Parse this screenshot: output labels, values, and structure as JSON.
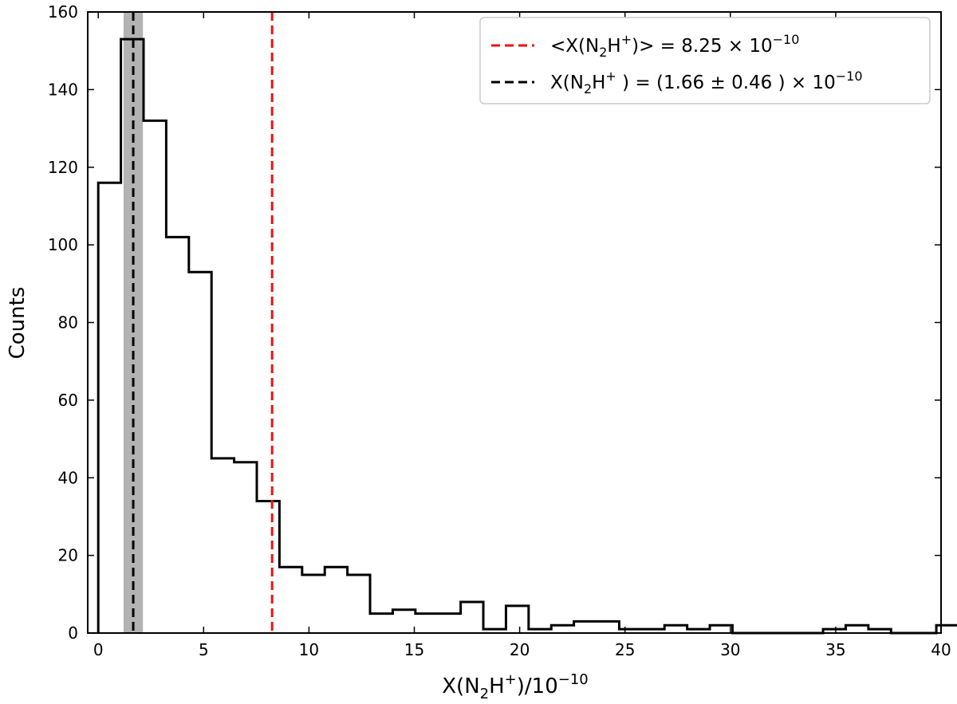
{
  "chart_data": {
    "type": "histogram",
    "xlabel": {
      "base": "X(N",
      "sub": "2",
      "mid": "H",
      "sup": "+",
      "close": ")/10",
      "exp": "−10"
    },
    "ylabel": "Counts",
    "xlim": [
      -0.5,
      40
    ],
    "ylim": [
      0,
      160
    ],
    "xticks": [
      0,
      5,
      10,
      15,
      20,
      25,
      30,
      35,
      40
    ],
    "xtick_labels": [
      "0",
      "5",
      "10",
      "15",
      "20",
      "25",
      "30",
      "35",
      "40"
    ],
    "yticks": [
      0,
      20,
      40,
      60,
      80,
      100,
      120,
      140,
      160
    ],
    "ytick_labels": [
      "0",
      "20",
      "40",
      "60",
      "80",
      "100",
      "120",
      "140",
      "160"
    ],
    "bin_width": 1.075,
    "bin_start": 0.0,
    "counts": [
      116,
      153,
      132,
      102,
      93,
      45,
      44,
      34,
      17,
      15,
      17,
      15,
      5,
      6,
      5,
      5,
      8,
      1,
      7,
      1,
      2,
      3,
      3,
      1,
      1,
      2,
      1,
      2,
      0,
      0,
      0,
      0,
      1,
      2,
      1,
      0,
      0,
      2
    ],
    "histogram_color": "#000000",
    "mean_line": {
      "x": 8.25,
      "color": "#ee1111",
      "style": "dashed"
    },
    "median_line": {
      "x": 1.66,
      "err": 0.46,
      "color": "#000000",
      "style": "dashed",
      "band_color": "#999999"
    },
    "legend": {
      "placement": "top-right",
      "entries": [
        {
          "color": "#ee1111",
          "pre": "<X(N",
          "sub": "2",
          "mid": "H",
          "sup": "+",
          "post": ")> = 8.25 × 10",
          "exp": "−10"
        },
        {
          "color": "#000000",
          "pre": "X(N",
          "sub": "2",
          "mid": "H",
          "sup": "+",
          "post": " ) = (1.66 ± 0.46 ) × 10",
          "exp": "−10"
        }
      ]
    }
  }
}
